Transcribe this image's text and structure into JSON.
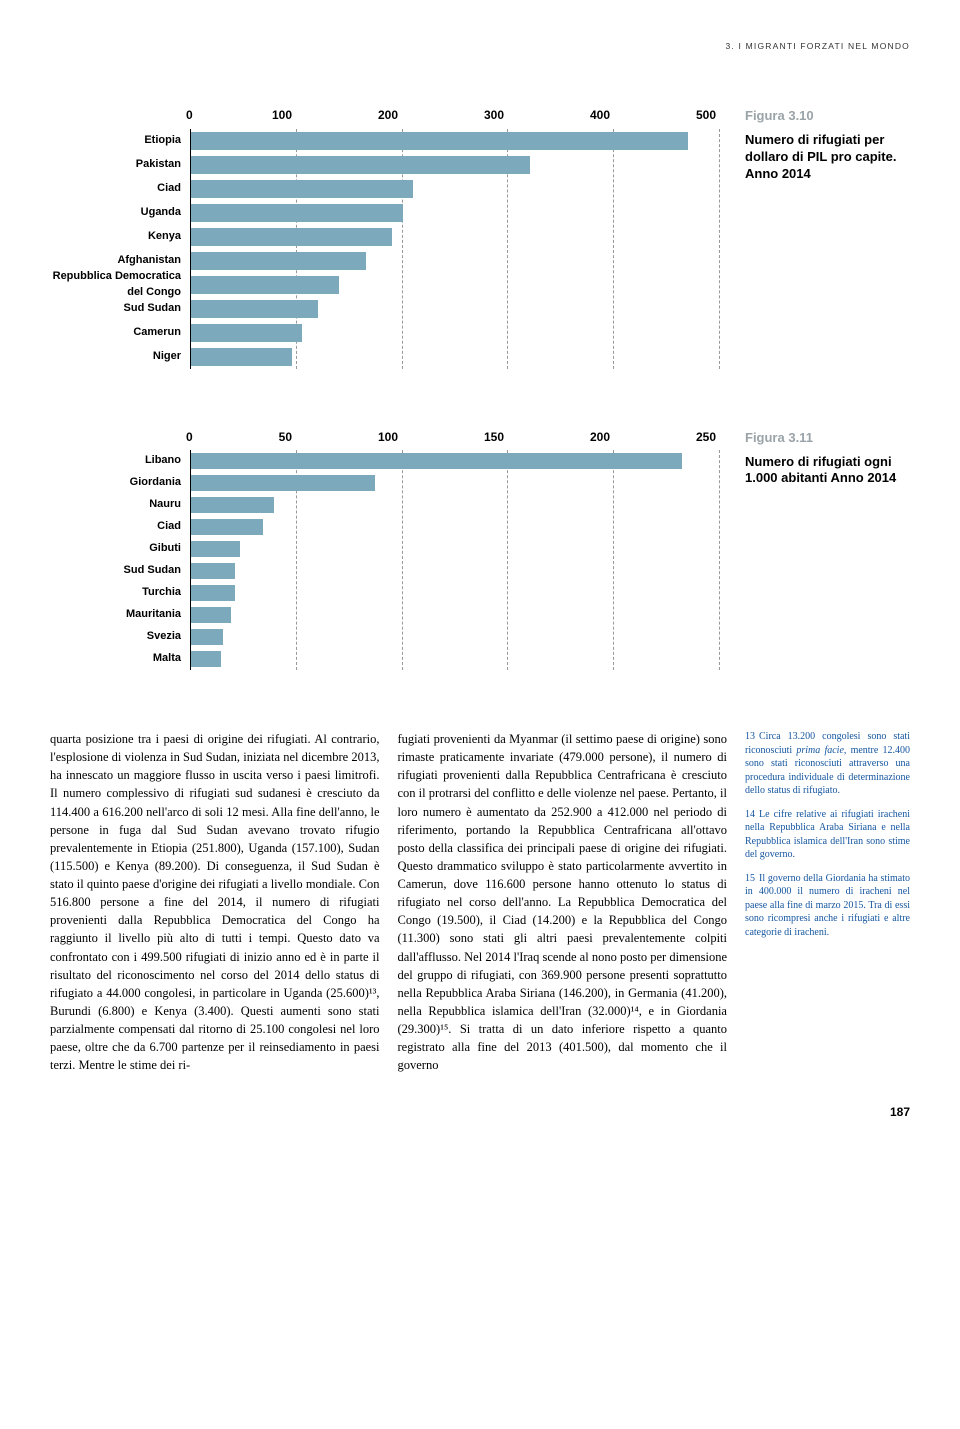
{
  "header": "3. I MIGRANTI FORZATI NEL MONDO",
  "chart1": {
    "type": "bar",
    "fignum": "Figura 3.10",
    "title": "Numero di rifugiati per dollaro di PIL pro capite. Anno 2014",
    "xmax": 500,
    "xticks": [
      0,
      100,
      200,
      300,
      400,
      500
    ],
    "bar_color": "#7da9bd",
    "categories": [
      "Etiopia",
      "Pakistan",
      "Ciad",
      "Uganda",
      "Kenya",
      "Afghanistan",
      "Repubblica Democratica del Congo",
      "Sud Sudan",
      "Camerun",
      "Niger"
    ],
    "values": [
      470,
      320,
      210,
      200,
      190,
      165,
      140,
      120,
      105,
      95
    ]
  },
  "chart2": {
    "type": "bar",
    "fignum": "Figura 3.11",
    "title": "Numero di rifugiati ogni 1.000 abitanti Anno 2014",
    "xmax": 250,
    "xticks": [
      0,
      50,
      100,
      150,
      200,
      250
    ],
    "bar_color": "#7da9bd",
    "categories": [
      "Libano",
      "Giordania",
      "Nauru",
      "Ciad",
      "Gibuti",
      "Sud Sudan",
      "Turchia",
      "Mauritania",
      "Svezia",
      "Malta"
    ],
    "values": [
      232,
      87,
      39,
      34,
      23,
      21,
      21,
      19,
      15,
      14
    ]
  },
  "text": {
    "col1": "quarta posizione tra i paesi di origine dei rifugiati. Al contrario, l'esplosione di violenza in Sud Sudan, iniziata nel dicembre 2013, ha innescato un maggiore flusso in uscita verso i paesi limitrofi. Il numero complessivo di rifugiati sud sudanesi è cresciuto da 114.400 a 616.200 nell'arco di soli 12 mesi. Alla fine dell'anno, le persone in fuga dal Sud Sudan avevano trovato rifugio prevalentemente in Etiopia (251.800), Uganda (157.100), Sudan (115.500) e Kenya (89.200). Di conseguenza, il Sud Sudan è stato il quinto paese d'origine dei rifugiati a livello mondiale. Con 516.800 persone a fine del 2014, il numero di rifugiati provenienti dalla Repubblica Democratica del Congo ha raggiunto il livello più alto di tutti i tempi. Questo dato va confrontato con i 499.500 rifugiati di inizio anno ed è in parte il risultato del riconoscimento nel corso del 2014 dello status di rifugiato a 44.000 congolesi, in particolare in Uganda (25.600)¹³, Burundi (6.800) e Kenya (3.400). Questi aumenti sono stati parzialmente compensati dal ritorno di 25.100 congolesi nel loro paese, oltre che da 6.700 partenze per il reinsediamento in paesi terzi. Mentre le stime dei ri-",
    "col2": "fugiati provenienti da Myanmar (il settimo paese di origine) sono rimaste praticamente invariate (479.000 persone), il numero di rifugiati provenienti dalla Repubblica Centrafricana è cresciuto con il protrarsi del conflitto e delle violenze nel paese. Pertanto, il loro numero è aumentato da 252.900 a 412.000 nel periodo di riferimento, portando la Repubblica Centrafricana all'ottavo posto della classifica dei principali paese di origine dei rifugiati. Questo drammatico sviluppo è stato particolarmente avvertito in Camerun, dove 116.600 persone hanno ottenuto lo status di rifugiato nel corso dell'anno. La Repubblica Democratica del Congo (19.500), il Ciad (14.200) e la Repubblica del Congo (11.300) sono stati gli altri paesi prevalentemente colpiti dall'afflusso. Nel 2014 l'Iraq scende al nono posto per dimensione del gruppo di rifugiati, con 369.900 persone presenti soprattutto nella Repubblica Araba Siriana (146.200), in Germania (41.200), nella Repubblica islamica dell'Iran (32.000)¹⁴, e in Giordania (29.300)¹⁵. Si tratta di un dato inferiore rispetto a quanto registrato alla fine del 2013 (401.500), dal momento che il governo"
  },
  "notes": {
    "n13": {
      "num": "13",
      "body_a": "Circa 13.200 congolesi sono stati riconosciuti ",
      "em": "prima facie",
      "body_b": ", mentre 12.400 sono stati riconosciuti attraverso una procedura individuale di determinazione dello status di rifugiato."
    },
    "n14": {
      "num": "14",
      "body": "Le cifre relative ai rifugiati iracheni nella Repubblica Araba Siriana e nella Repubblica islamica dell'Iran sono stime del governo."
    },
    "n15": {
      "num": "15",
      "body": "Il governo della Giordania ha stimato in 400.000 il numero di iracheni nel paese alla fine di marzo 2015. Tra di essi sono ricompresi anche i rifugiati e altre categorie di iracheni."
    }
  },
  "pagenum": "187"
}
